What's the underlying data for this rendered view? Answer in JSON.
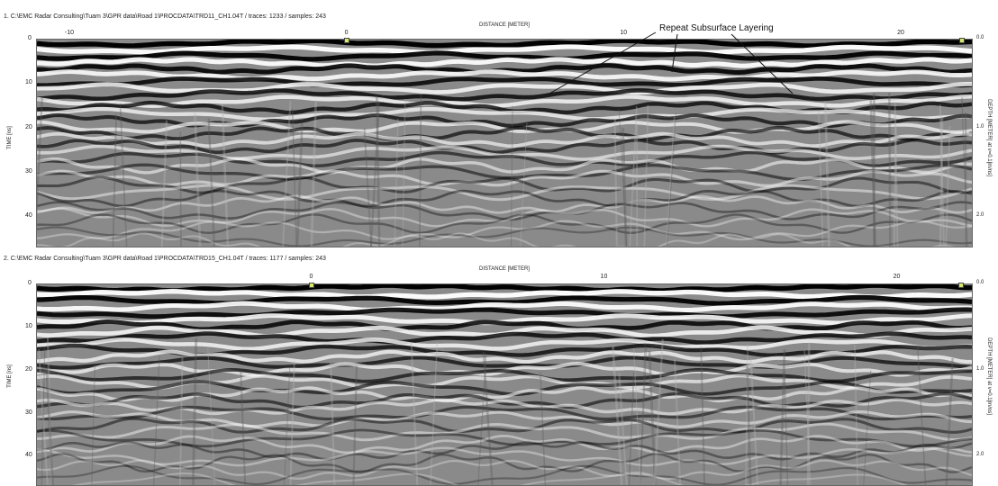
{
  "annotation": "Repeat Subsurface Layering",
  "colors": {
    "background": "#ffffff",
    "marker": "#d9e86a",
    "reflector_dark": "#000000",
    "reflector_light": "#ffffff",
    "mid_gray": "#8a8a8a"
  },
  "chart_data": [
    {
      "type": "heatmap",
      "title": "1. C:\\EMC Radar Consulting\\Tuam 3\\GPR data\\Road 1\\PROCDATA\\TRD11_CH1.04T / traces: 1233 / samples: 243",
      "xlabel": "DISTANCE [METER]",
      "ylabel": "TIME [ns]",
      "y2label": "DEPTH [METER] at v=0.1[m/ns]",
      "x_ticks": [
        -10,
        0,
        10,
        20
      ],
      "y_ticks": [
        0,
        10,
        20,
        30,
        40
      ],
      "y2_ticks": [
        "0.0",
        "1.0",
        "2.0"
      ],
      "xlim": [
        -11.2,
        22.6
      ],
      "ylim": [
        0,
        47
      ],
      "markers_x": [
        0,
        22.2
      ],
      "traces": 1233,
      "samples": 243
    },
    {
      "type": "heatmap",
      "title": "2. C:\\EMC Radar Consulting\\Tuam 3\\GPR data\\Road 1\\PROCDATA\\TRD15_CH1.04T / traces: 1177 / samples: 243",
      "xlabel": "DISTANCE [METER]",
      "ylabel": "TIME [ns]",
      "y2label": "DEPTH [METER] at v=0.1[m/ns]",
      "x_ticks": [
        0,
        10,
        20
      ],
      "y_ticks": [
        0,
        10,
        20,
        30,
        40
      ],
      "y2_ticks": [
        "0.0",
        "1.0",
        "2.0"
      ],
      "xlim": [
        -9.4,
        22.6
      ],
      "ylim": [
        0,
        47
      ],
      "markers_x": [
        0,
        22.2
      ],
      "traces": 1177,
      "samples": 243
    }
  ]
}
